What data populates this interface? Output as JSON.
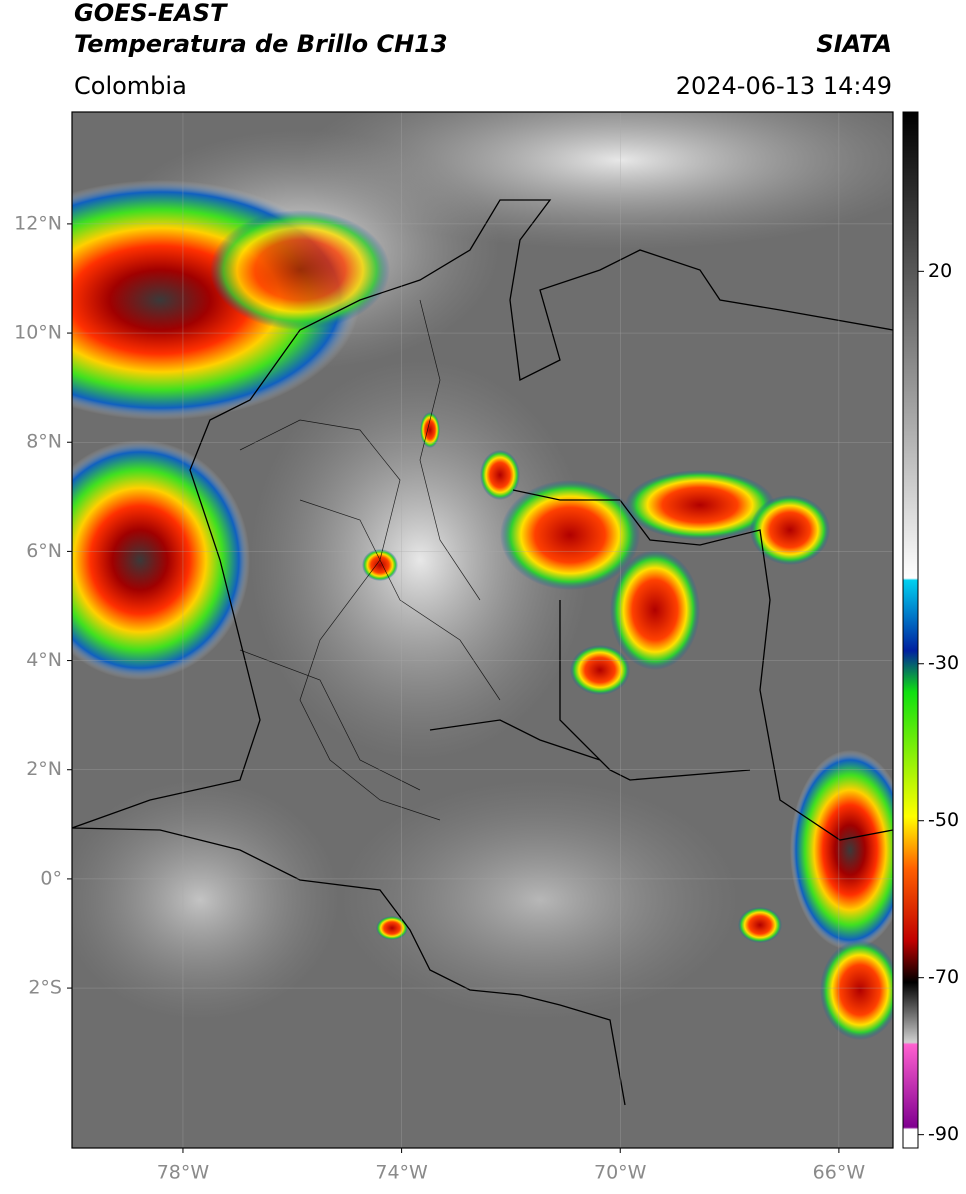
{
  "header": {
    "title_line1": "GOES-EAST",
    "title_line2": "Temperatura de Brillo CH13",
    "source": "SIATA",
    "region": "Colombia",
    "datetime": "2024-06-13 14:49"
  },
  "map": {
    "lonlim": [
      -80.03,
      -65.01
    ],
    "latlim": [
      -4.93,
      14.05
    ],
    "lon_ticks": [
      {
        "value": -78,
        "label": "78°W"
      },
      {
        "value": -74,
        "label": "74°W"
      },
      {
        "value": -70,
        "label": "70°W"
      },
      {
        "value": -66,
        "label": "66°W"
      }
    ],
    "lat_ticks": [
      {
        "value": 12,
        "label": "12°N"
      },
      {
        "value": 10,
        "label": "10°N"
      },
      {
        "value": 8,
        "label": "8°N"
      },
      {
        "value": 6,
        "label": "6°N"
      },
      {
        "value": 4,
        "label": "4°N"
      },
      {
        "value": 2,
        "label": "2°N"
      },
      {
        "value": 0,
        "label": "0°"
      },
      {
        "value": -2,
        "label": "2°S"
      }
    ]
  },
  "colorbar": {
    "lim": [
      -91.7,
      40.3
    ],
    "ticks": [
      20,
      -30,
      -50,
      -70,
      -90
    ]
  }
}
